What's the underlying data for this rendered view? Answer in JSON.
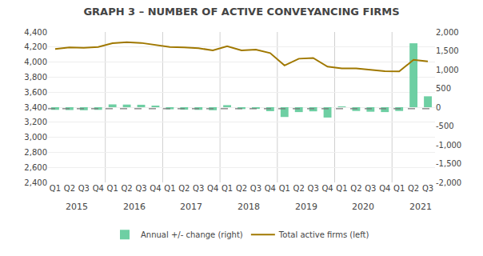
{
  "chart_data": {
    "type": "bar",
    "title": "GRAPH 3 – NUMBER OF ACTIVE CONVEYANCING FIRMS",
    "categories": [
      "Q1",
      "Q2",
      "Q3",
      "Q4",
      "Q1",
      "Q2",
      "Q3",
      "Q4",
      "Q1",
      "Q2",
      "Q3",
      "Q4",
      "Q1",
      "Q2",
      "Q3",
      "Q4",
      "Q1",
      "Q2",
      "Q3",
      "Q4",
      "Q1",
      "Q2",
      "Q3",
      "Q4",
      "Q1",
      "Q2",
      "Q3"
    ],
    "annotations": [
      "2015",
      "2016",
      "2017",
      "2018",
      "2019",
      "2020",
      "2021"
    ],
    "series": [
      {
        "name": "Annual +/- change (right)",
        "type": "bar",
        "color": "#6ECFA3",
        "axis": "y2",
        "values": [
          -70,
          -75,
          -80,
          -70,
          75,
          70,
          65,
          25,
          -55,
          -65,
          -70,
          -80,
          55,
          -50,
          -45,
          -105,
          -260,
          -130,
          -110,
          -275,
          15,
          -100,
          -120,
          -130,
          -100,
          1700,
          290
        ]
      },
      {
        "name": "Total active firms (left)",
        "type": "line",
        "color": "#A07800",
        "values": [
          4175,
          4195,
          4190,
          4200,
          4250,
          4265,
          4255,
          4225,
          4200,
          4195,
          4185,
          4155,
          4210,
          4155,
          4165,
          4120,
          3955,
          4045,
          4055,
          3940,
          3915,
          3915,
          3895,
          3880,
          3875,
          4030,
          4010
        ]
      }
    ],
    "hline": {
      "value": 3380,
      "color": "#777777",
      "line_style": "dashed"
    },
    "ylim": [
      2400,
      4400
    ],
    "yticks": [
      {
        "value": 2400,
        "label": "2,400"
      },
      {
        "value": 2600,
        "label": "2,600"
      },
      {
        "value": 2800,
        "label": "2,800"
      },
      {
        "value": 3000,
        "label": "3,000"
      },
      {
        "value": 3200,
        "label": "3,200"
      },
      {
        "value": 3400,
        "label": "3,400"
      },
      {
        "value": 3600,
        "label": "3,600"
      },
      {
        "value": 3800,
        "label": "3,800"
      },
      {
        "value": 4000,
        "label": "4,000"
      },
      {
        "value": 4200,
        "label": "4,200"
      },
      {
        "value": 4400,
        "label": "4,400"
      }
    ],
    "y2lim": [
      -2000,
      2000
    ],
    "y2ticks": [
      {
        "value": -2000,
        "label": "-2,000"
      },
      {
        "value": -1500,
        "label": "-1,500"
      },
      {
        "value": -1000,
        "label": "-1,000"
      },
      -500,
      0,
      500,
      {
        "value": 1000,
        "label": "1,000"
      },
      {
        "value": 1500,
        "label": "1,500"
      },
      {
        "value": 2000,
        "label": "2,000"
      }
    ],
    "grid": true,
    "legend": "bottom"
  }
}
